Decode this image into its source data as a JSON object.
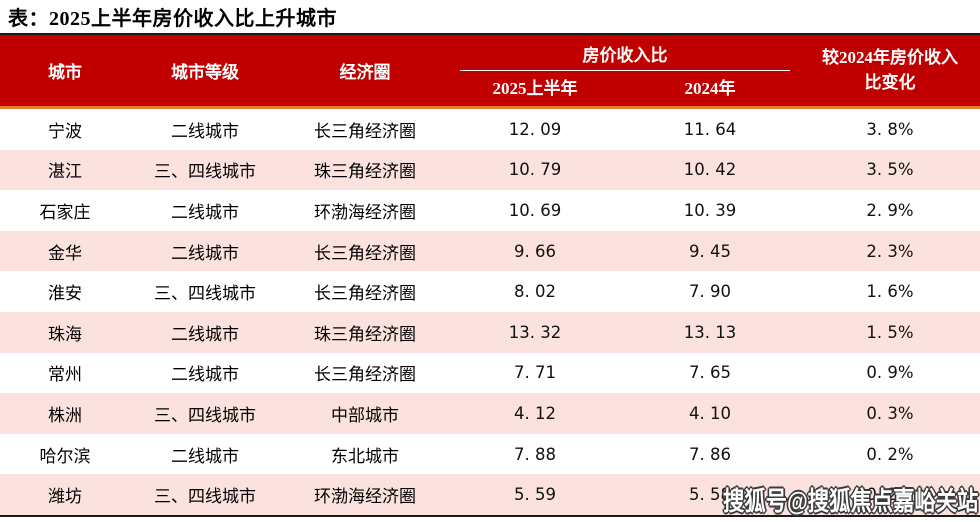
{
  "page": {
    "title": "表：2025上半年房价收入比上升城市"
  },
  "colors": {
    "header_red": "#C00000",
    "row_pink": "#FBE2DE",
    "orange_rule": "#E87C30",
    "dark_border": "#1A1A1A",
    "header_text": "#FFFFFF",
    "body_text": "#000000"
  },
  "table": {
    "headers": {
      "city": "城市",
      "tier": "城市等级",
      "circle": "经济圈",
      "ratio_group": "房价收入比",
      "ratio_2025": "2025上半年",
      "ratio_2024": "2024年",
      "change_line1": "较2024年房价收入",
      "change_line2": "比变化"
    },
    "rows": [
      {
        "city": "宁波",
        "tier": "二线城市",
        "circle": "长三角经济圈",
        "v2025": "12. 09",
        "v2024": "11. 64",
        "change": "3. 8%"
      },
      {
        "city": "湛江",
        "tier": "三、四线城市",
        "circle": "珠三角经济圈",
        "v2025": "10. 79",
        "v2024": "10. 42",
        "change": "3. 5%"
      },
      {
        "city": "石家庄",
        "tier": "二线城市",
        "circle": "环渤海经济圈",
        "v2025": "10. 69",
        "v2024": "10. 39",
        "change": "2. 9%"
      },
      {
        "city": "金华",
        "tier": "二线城市",
        "circle": "长三角经济圈",
        "v2025": "9. 66",
        "v2024": "9. 45",
        "change": "2. 3%"
      },
      {
        "city": "淮安",
        "tier": "三、四线城市",
        "circle": "长三角经济圈",
        "v2025": "8. 02",
        "v2024": "7. 90",
        "change": "1. 6%"
      },
      {
        "city": "珠海",
        "tier": "二线城市",
        "circle": "珠三角经济圈",
        "v2025": "13. 32",
        "v2024": "13. 13",
        "change": "1. 5%"
      },
      {
        "city": "常州",
        "tier": "二线城市",
        "circle": "长三角经济圈",
        "v2025": "7. 71",
        "v2024": "7. 65",
        "change": "0. 9%"
      },
      {
        "city": "株洲",
        "tier": "三、四线城市",
        "circle": "中部城市",
        "v2025": "4. 12",
        "v2024": "4. 10",
        "change": "0. 3%"
      },
      {
        "city": "哈尔滨",
        "tier": "二线城市",
        "circle": "东北城市",
        "v2025": "7. 88",
        "v2024": "7. 86",
        "change": "0. 2%"
      },
      {
        "city": "潍坊",
        "tier": "三、四线城市",
        "circle": "环渤海经济圈",
        "v2025": "5. 59",
        "v2024": "5. 58",
        "change": "0. 2%"
      }
    ]
  },
  "watermark": "搜狐号@搜狐焦点嘉峪关站",
  "chart_data": {
    "type": "table",
    "title": "表：2025上半年房价收入比上升城市",
    "column_group": "房价收入比",
    "columns": [
      "城市",
      "城市等级",
      "经济圈",
      "房价收入比 2025上半年",
      "房价收入比 2024年",
      "较2024年房价收入比变化"
    ],
    "rows": [
      [
        "宁波",
        "二线城市",
        "长三角经济圈",
        12.09,
        11.64,
        "3.8%"
      ],
      [
        "湛江",
        "三、四线城市",
        "珠三角经济圈",
        10.79,
        10.42,
        "3.5%"
      ],
      [
        "石家庄",
        "二线城市",
        "环渤海经济圈",
        10.69,
        10.39,
        "2.9%"
      ],
      [
        "金华",
        "二线城市",
        "长三角经济圈",
        9.66,
        9.45,
        "2.3%"
      ],
      [
        "淮安",
        "三、四线城市",
        "长三角经济圈",
        8.02,
        7.9,
        "1.6%"
      ],
      [
        "珠海",
        "二线城市",
        "珠三角经济圈",
        13.32,
        13.13,
        "1.5%"
      ],
      [
        "常州",
        "二线城市",
        "长三角经济圈",
        7.71,
        7.65,
        "0.9%"
      ],
      [
        "株洲",
        "三、四线城市",
        "中部城市",
        4.12,
        4.1,
        "0.3%"
      ],
      [
        "哈尔滨",
        "二线城市",
        "东北城市",
        7.88,
        7.86,
        "0.2%"
      ],
      [
        "潍坊",
        "三、四线城市",
        "环渤海经济圈",
        5.59,
        5.58,
        "0.2%"
      ]
    ]
  }
}
